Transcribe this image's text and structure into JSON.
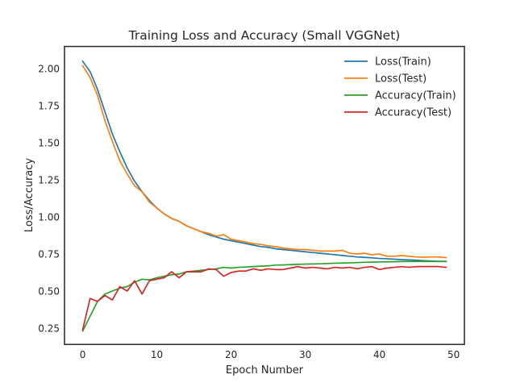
{
  "chart_data": {
    "type": "line",
    "title": "Training Loss and Accuracy (Small VGGNet)",
    "xlabel": "Epoch Number",
    "ylabel": "Loss/Accuracy",
    "xlim": [
      -2.45,
      51.45
    ],
    "ylim": [
      0.14,
      2.15
    ],
    "xticks": [
      0,
      10,
      20,
      30,
      40,
      50
    ],
    "yticks": [
      0.25,
      0.5,
      0.75,
      1.0,
      1.25,
      1.5,
      1.75,
      2.0
    ],
    "grid": false,
    "legend_position": "top-right",
    "x": [
      0,
      1,
      2,
      3,
      4,
      5,
      6,
      7,
      8,
      9,
      10,
      11,
      12,
      13,
      14,
      15,
      16,
      17,
      18,
      19,
      20,
      21,
      22,
      23,
      24,
      25,
      26,
      27,
      28,
      29,
      30,
      31,
      32,
      33,
      34,
      35,
      36,
      37,
      38,
      39,
      40,
      41,
      42,
      43,
      44,
      45,
      46,
      47,
      48,
      49
    ],
    "series": [
      {
        "name": "Loss(Train)",
        "color": "#1f77b4",
        "values": [
          2.05,
          1.98,
          1.86,
          1.71,
          1.56,
          1.44,
          1.33,
          1.24,
          1.17,
          1.11,
          1.06,
          1.02,
          0.99,
          0.97,
          0.94,
          0.92,
          0.9,
          0.88,
          0.865,
          0.85,
          0.84,
          0.83,
          0.82,
          0.81,
          0.8,
          0.795,
          0.785,
          0.78,
          0.775,
          0.77,
          0.765,
          0.76,
          0.755,
          0.75,
          0.745,
          0.74,
          0.735,
          0.73,
          0.727,
          0.724,
          0.72,
          0.718,
          0.715,
          0.712,
          0.71,
          0.708,
          0.705,
          0.703,
          0.7,
          0.7
        ]
      },
      {
        "name": "Loss(Test)",
        "color": "#ff7f0e",
        "values": [
          2.02,
          1.94,
          1.82,
          1.65,
          1.51,
          1.38,
          1.29,
          1.21,
          1.17,
          1.1,
          1.06,
          1.02,
          0.99,
          0.97,
          0.94,
          0.92,
          0.9,
          0.89,
          0.87,
          0.88,
          0.85,
          0.84,
          0.83,
          0.82,
          0.815,
          0.805,
          0.8,
          0.79,
          0.785,
          0.78,
          0.78,
          0.775,
          0.77,
          0.77,
          0.77,
          0.775,
          0.755,
          0.75,
          0.755,
          0.745,
          0.75,
          0.735,
          0.735,
          0.74,
          0.735,
          0.73,
          0.728,
          0.73,
          0.73,
          0.725
        ]
      },
      {
        "name": "Accuracy(Train)",
        "color": "#2ca02c",
        "values": [
          0.23,
          0.33,
          0.43,
          0.48,
          0.5,
          0.52,
          0.53,
          0.56,
          0.58,
          0.575,
          0.59,
          0.6,
          0.61,
          0.615,
          0.63,
          0.635,
          0.64,
          0.645,
          0.65,
          0.66,
          0.655,
          0.66,
          0.662,
          0.665,
          0.668,
          0.67,
          0.675,
          0.676,
          0.678,
          0.68,
          0.682,
          0.683,
          0.684,
          0.686,
          0.688,
          0.689,
          0.69,
          0.692,
          0.694,
          0.695,
          0.696,
          0.697,
          0.698,
          0.699,
          0.7,
          0.7,
          0.7,
          0.7,
          0.7,
          0.7
        ]
      },
      {
        "name": "Accuracy(Test)",
        "color": "#d62728",
        "values": [
          0.24,
          0.45,
          0.43,
          0.47,
          0.44,
          0.53,
          0.5,
          0.57,
          0.48,
          0.57,
          0.58,
          0.59,
          0.63,
          0.59,
          0.63,
          0.63,
          0.63,
          0.65,
          0.645,
          0.6,
          0.625,
          0.635,
          0.635,
          0.65,
          0.64,
          0.65,
          0.645,
          0.645,
          0.655,
          0.665,
          0.655,
          0.66,
          0.655,
          0.65,
          0.66,
          0.655,
          0.66,
          0.65,
          0.66,
          0.665,
          0.645,
          0.655,
          0.66,
          0.665,
          0.66,
          0.665,
          0.665,
          0.665,
          0.665,
          0.66
        ]
      }
    ]
  }
}
